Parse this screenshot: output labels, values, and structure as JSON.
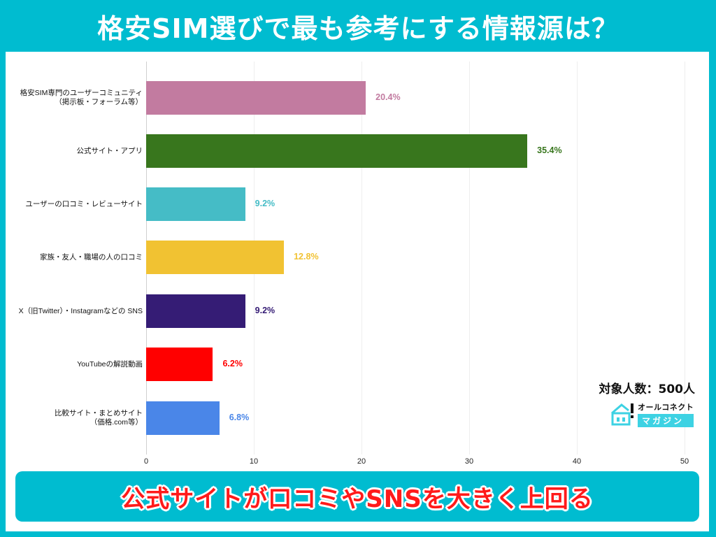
{
  "header": {
    "title": "格安SIM選びで最も参考にする情報源は？"
  },
  "sample": {
    "label": "対象人数：500人"
  },
  "logo": {
    "top_text": "オールコネクト",
    "bottom_text": "マガジン"
  },
  "banner": {
    "text": "公式サイトが口コミやSNSを大きく上回る"
  },
  "chart_data": {
    "type": "bar",
    "orientation": "horizontal",
    "title": "格安SIM選びで最も参考にする情報源は？",
    "xlabel": "",
    "ylabel": "",
    "xlim": [
      0,
      50
    ],
    "x_ticks": [
      "0",
      "10",
      "20",
      "30",
      "40",
      "50"
    ],
    "grid": true,
    "legend": "none",
    "categories": [
      [
        "格安SIM専門のユーザーコミュニティ",
        "（掲示板・フォーラム等）"
      ],
      [
        "公式サイト・アプリ"
      ],
      [
        "ユーザーの口コミ・レビューサイト"
      ],
      [
        "家族・友人・職場の人の口コミ"
      ],
      [
        "X（旧Twitter）・Instagramなどの SNS"
      ],
      [
        "YouTubeの解説動画"
      ],
      [
        "比較サイト・まとめサイト",
        "（価格.com等）"
      ]
    ],
    "values": [
      20.4,
      35.4,
      9.2,
      12.8,
      9.2,
      6.2,
      6.8
    ],
    "value_labels": [
      "20.4%",
      "35.4%",
      "9.2%",
      "12.8%",
      "9.2%",
      "6.2%",
      "6.8%"
    ],
    "colors": [
      "#c27ba0",
      "#38761d",
      "#45bcc6",
      "#f1c232",
      "#351c75",
      "#ff0000",
      "#4a86e8"
    ],
    "annotation": "対象人数：500人"
  }
}
